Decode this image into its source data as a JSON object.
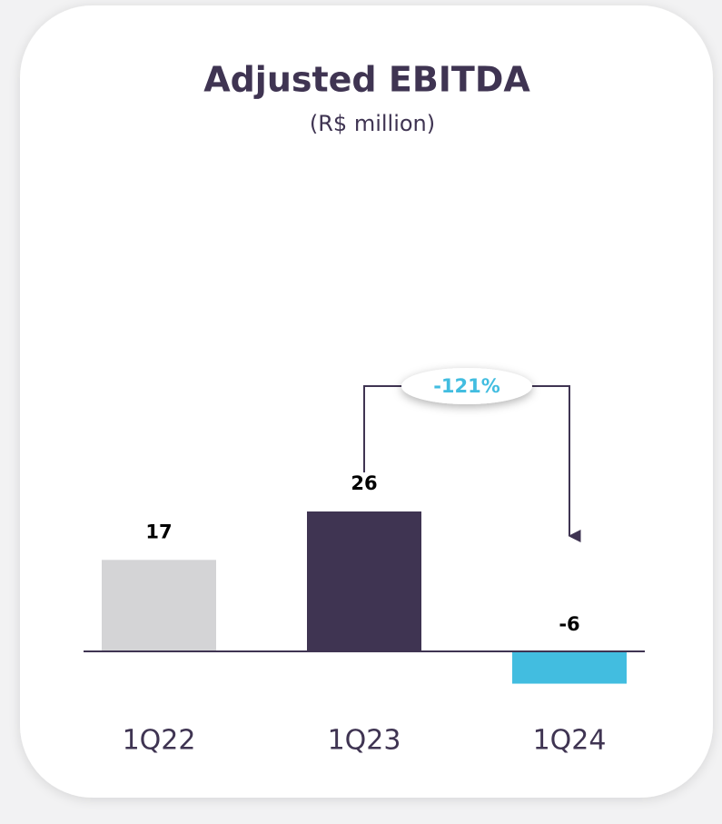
{
  "chart_data": {
    "type": "bar",
    "title": "Adjusted EBITDA",
    "subtitle": "(R$ million)",
    "categories": [
      "1Q22",
      "1Q23",
      "1Q24"
    ],
    "values": [
      17,
      26,
      -6
    ],
    "colors": [
      "#d4d4d6",
      "#3f3452",
      "#42bde0"
    ],
    "annotation": "-121%"
  }
}
